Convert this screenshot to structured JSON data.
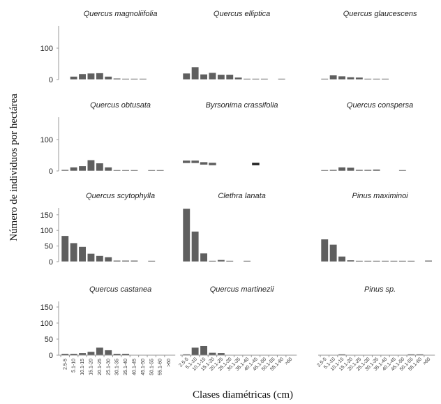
{
  "chart_data": {
    "type": "bar",
    "ylabel": "Número de individuos por hectárea",
    "xlabel": "Clases diamétricas (cm)",
    "categories": [
      "2.5-5",
      "5.1-10",
      "10.1-15",
      "15.1-20",
      "20.1-25",
      "25.1-30",
      "30.1-35",
      "35.1-40",
      "40.1-45",
      "45.1-50",
      "50.1-55",
      "55.1-60",
      ">60"
    ],
    "grid": false,
    "bar_color": "#5f5f5f",
    "rows": [
      {
        "ylim": [
          0,
          170
        ],
        "yticks": [
          0,
          100
        ]
      },
      {
        "ylim": [
          0,
          170
        ],
        "yticks": [
          0,
          100
        ]
      },
      {
        "ylim": [
          0,
          170
        ],
        "yticks": [
          0,
          50,
          100,
          150
        ]
      },
      {
        "ylim": [
          0,
          170
        ],
        "yticks": [
          0,
          50,
          100,
          150
        ]
      }
    ],
    "panels": [
      {
        "title": "Quercus magnoliifolia",
        "row": 0,
        "col": 0,
        "values": [
          0,
          10,
          18,
          20,
          21,
          10,
          4,
          3,
          3,
          1,
          0,
          0,
          0
        ]
      },
      {
        "title": "Quercus elliptica",
        "row": 0,
        "col": 1,
        "values": [
          20,
          40,
          17,
          22,
          16,
          16,
          7,
          1,
          1,
          1,
          0,
          1,
          0
        ]
      },
      {
        "title": "Quercus glaucescens",
        "row": 0,
        "col": 2,
        "values": [
          2,
          14,
          11,
          8,
          7,
          1,
          1,
          1,
          0,
          0,
          0,
          0,
          0
        ]
      },
      {
        "title": "Quercus obtusata",
        "row": 1,
        "col": 0,
        "values": [
          4,
          12,
          16,
          35,
          25,
          12,
          1,
          3,
          2,
          0,
          2,
          2,
          0
        ]
      },
      {
        "title": "Byrsonima crassifolia",
        "row": 1,
        "col": 1,
        "values": [
          0,
          0,
          0,
          0,
          0,
          0,
          0,
          0,
          0,
          0,
          0,
          0,
          0
        ],
        "floating": [
          33,
          33,
          28,
          26,
          0,
          0,
          0,
          0,
          26,
          0,
          0,
          0,
          0
        ]
      },
      {
        "title": "Quercus conspersa",
        "row": 1,
        "col": 2,
        "values": [
          1,
          4,
          12,
          11,
          4,
          4,
          5,
          0,
          0,
          1,
          0,
          0,
          0
        ]
      },
      {
        "title": "Quercus scytophylla",
        "row": 2,
        "col": 0,
        "values": [
          83,
          60,
          48,
          26,
          19,
          15,
          4,
          4,
          4,
          0,
          2,
          0,
          0
        ]
      },
      {
        "title": "Clethra lanata",
        "row": 2,
        "col": 1,
        "values": [
          170,
          97,
          27,
          2,
          6,
          1,
          0,
          3,
          0,
          0,
          0,
          0,
          0
        ]
      },
      {
        "title": "Pinus maximinoi",
        "row": 2,
        "col": 2,
        "values": [
          72,
          55,
          17,
          5,
          1,
          3,
          2,
          2,
          2,
          2,
          2,
          0,
          4
        ]
      },
      {
        "title": "Quercus castanea",
        "row": 3,
        "col": 0,
        "values": [
          5,
          5,
          7,
          11,
          24,
          16,
          5,
          5,
          0,
          0,
          0,
          0,
          0
        ]
      },
      {
        "title": "Quercus martinezii",
        "row": 3,
        "col": 1,
        "values": [
          1,
          24,
          29,
          8,
          7,
          0,
          0,
          0,
          0,
          0,
          0,
          0,
          0
        ]
      },
      {
        "title": "Pinus sp.",
        "row": 3,
        "col": 2,
        "values": [
          0,
          0,
          1,
          0,
          0,
          0,
          0,
          0,
          0,
          0,
          1,
          1,
          0
        ]
      }
    ]
  }
}
